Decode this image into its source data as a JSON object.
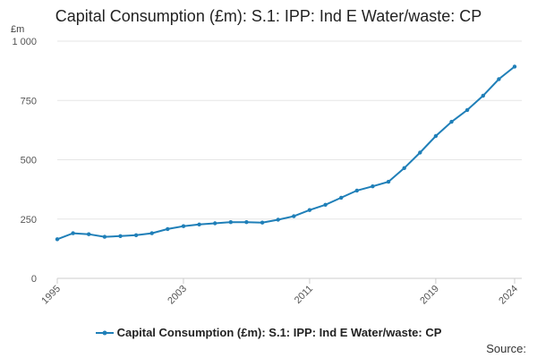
{
  "chart_data": {
    "type": "line",
    "title": "Capital Consumption (£m): S.1: IPP: Ind E Water/waste: CP",
    "ylabel": "£m",
    "xlabel": "",
    "ylim": [
      0,
      1000
    ],
    "xlim": [
      1995,
      2024
    ],
    "y_ticks": [
      0,
      250,
      500,
      750,
      1000
    ],
    "y_tick_labels": [
      "0",
      "250",
      "500",
      "750",
      "1 000"
    ],
    "x_ticks": [
      1995,
      2003,
      2011,
      2019,
      2024
    ],
    "x_tick_labels": [
      "1995",
      "2003",
      "2011",
      "2019",
      "2024"
    ],
    "grid": "horizontal",
    "legend_position": "bottom",
    "series_color": "#1f7fb8",
    "series": [
      {
        "name": "Capital Consumption (£m): S.1: IPP: Ind E Water/waste: CP",
        "x": [
          1995,
          1996,
          1997,
          1998,
          1999,
          2000,
          2001,
          2002,
          2003,
          2004,
          2005,
          2006,
          2007,
          2008,
          2009,
          2010,
          2011,
          2012,
          2013,
          2014,
          2015,
          2016,
          2017,
          2018,
          2019,
          2020,
          2021,
          2022,
          2023,
          2024
        ],
        "values": [
          165,
          190,
          186,
          175,
          178,
          182,
          190,
          208,
          220,
          227,
          232,
          237,
          237,
          235,
          247,
          262,
          288,
          310,
          340,
          370,
          388,
          407,
          465,
          530,
          600,
          660,
          710,
          770,
          840,
          893
        ]
      }
    ]
  },
  "source_label": "Source:"
}
